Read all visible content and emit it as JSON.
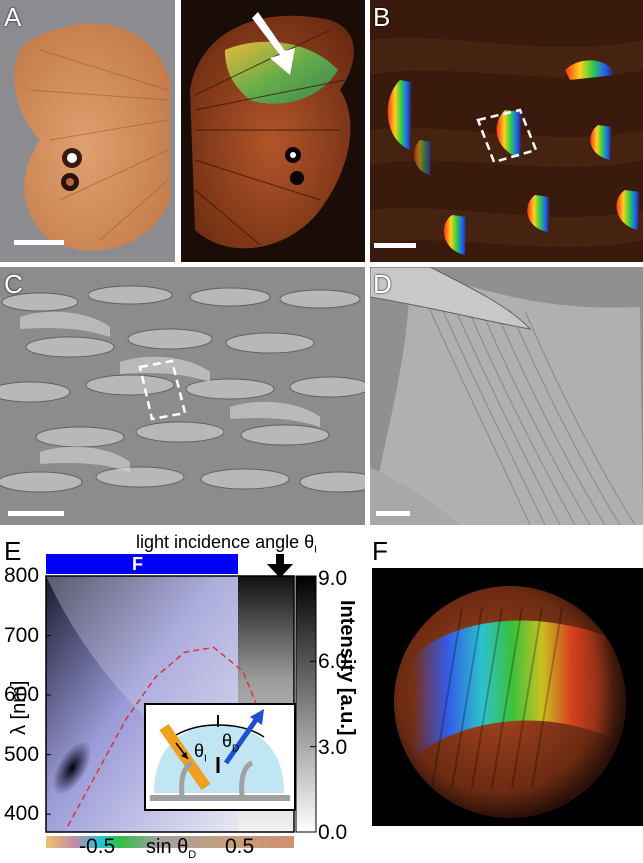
{
  "panels": {
    "A": {
      "label": "A"
    },
    "B": {
      "label": "B"
    },
    "C": {
      "label": "C"
    },
    "D": {
      "label": "D"
    },
    "E": {
      "label": "E"
    },
    "F": {
      "label": "F"
    }
  },
  "panelE": {
    "top_bar_label": "F",
    "incidence_label": "light incidence angle θ",
    "incidence_sub": "I",
    "colorbar_label": "Intensity [a.u.]",
    "inset_theta_i": "θ",
    "inset_theta_i_sub": "I",
    "inset_theta_d": "θ",
    "inset_theta_d_sub": "D",
    "x_axis_text": "sin θ",
    "x_axis_sub": "D"
  },
  "chart_data": {
    "type": "heatmap",
    "title": "",
    "xlabel": "sin θD",
    "ylabel": "λ [nm]",
    "x_ticks": [
      "-0.5",
      "0.5"
    ],
    "y_ticks": [
      "800",
      "700",
      "600",
      "500",
      "400"
    ],
    "colorbar_ticks": [
      "9.0",
      "6.0",
      "3.0",
      "0.0"
    ],
    "colorbar_label": "Intensity [a.u.]",
    "colorbar_range": [
      0.0,
      9.0
    ],
    "ylim": [
      370,
      800
    ],
    "xlim": [
      -0.85,
      0.85
    ],
    "dashed_curve": {
      "x": [
        -0.7,
        -0.5,
        -0.3,
        -0.1,
        0.1,
        0.3,
        0.5,
        0.7
      ],
      "y": [
        380,
        470,
        560,
        630,
        672,
        680,
        640,
        520
      ]
    }
  },
  "colors": {
    "blue_bar": "#0000ff",
    "dashed_curve": "#e0303a",
    "inset_arrow_incident": "#f0a020",
    "inset_arrow_diffracted": "#1e4fd0"
  }
}
